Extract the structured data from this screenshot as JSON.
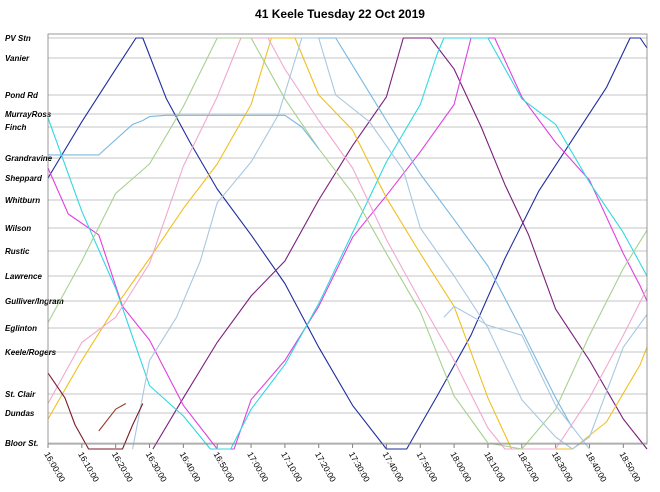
{
  "chart_data": {
    "type": "line",
    "title": "41 Keele Tuesday 22 Oct 2019",
    "xlabel": "",
    "ylabel": "",
    "grid": true,
    "xlim": [
      "16:00",
      "18:57"
    ],
    "x_ticks": [
      "16:00:00",
      "16:10:00",
      "16:20:00",
      "16:30:00",
      "16:40:00",
      "16:50:00",
      "17:00:00",
      "17:10:00",
      "17:20:00",
      "17:30:00",
      "17:40:00",
      "17:50:00",
      "18:00:00",
      "18:10:00",
      "18:20:00",
      "18:30:00",
      "18:40:00",
      "18:50:00"
    ],
    "stops": [
      "PV Stn",
      "Vanier",
      "Pond Rd",
      "MurrayRoss",
      "Finch",
      "Grandravine",
      "Sheppard",
      "Whitburn",
      "Wilson",
      "Rustic",
      "Lawrence",
      "Gulliver/Ingram",
      "Eglinton",
      "Keele/Rogers",
      "St. Clair",
      "Dundas",
      "Bloor St."
    ],
    "series": [
      {
        "color": "#1f2d9e",
        "points": [
          [
            "16:00",
            6
          ],
          [
            "16:10",
            3.6
          ],
          [
            "16:20",
            1.3
          ],
          [
            "16:26",
            0
          ],
          [
            "16:28",
            0
          ],
          [
            "16:35",
            2.2
          ],
          [
            "16:42",
            4.5
          ],
          [
            "16:50",
            6.5
          ],
          [
            "17:00",
            8.3
          ],
          [
            "17:10",
            10.3
          ],
          [
            "17:20",
            12.8
          ],
          [
            "17:30",
            14.6
          ],
          [
            "17:40",
            16.2
          ],
          [
            "17:46",
            16.2
          ],
          [
            "17:55",
            14.1
          ],
          [
            "18:05",
            12.3
          ],
          [
            "18:15",
            9.3
          ],
          [
            "18:25",
            6.6
          ],
          [
            "18:35",
            4.4
          ],
          [
            "18:45",
            1.8
          ],
          [
            "18:52",
            0
          ],
          [
            "18:55",
            0
          ],
          [
            "18:57",
            0.5
          ]
        ]
      },
      {
        "color": "#7a1f7a",
        "points": [
          [
            "16:31",
            16.2
          ],
          [
            "16:40",
            14.2
          ],
          [
            "16:50",
            12.6
          ],
          [
            "17:00",
            10.8
          ],
          [
            "17:10",
            9.4
          ],
          [
            "17:20",
            7
          ],
          [
            "17:30",
            4.6
          ],
          [
            "17:40",
            2.1
          ],
          [
            "17:45",
            0
          ],
          [
            "17:53",
            0
          ],
          [
            "18:00",
            1.3
          ],
          [
            "18:08",
            4
          ],
          [
            "18:15",
            6.3
          ],
          [
            "18:22",
            8.3
          ],
          [
            "18:30",
            11.3
          ],
          [
            "18:40",
            13.2
          ],
          [
            "18:50",
            15.2
          ],
          [
            "18:57",
            16.2
          ]
        ]
      },
      {
        "color": "#e040e0",
        "points": [
          [
            "16:00",
            5.5
          ],
          [
            "16:06",
            7.5
          ],
          [
            "16:15",
            8.3
          ],
          [
            "16:22",
            11.2
          ],
          [
            "16:30",
            12.5
          ],
          [
            "16:40",
            14.6
          ],
          [
            "16:50",
            16.2
          ],
          [
            "16:55",
            16.2
          ],
          [
            "17:00",
            14.3
          ],
          [
            "17:10",
            13.2
          ],
          [
            "17:20",
            11.2
          ],
          [
            "17:30",
            8.4
          ],
          [
            "17:40",
            6.8
          ],
          [
            "17:50",
            4.8
          ],
          [
            "18:00",
            2.5
          ],
          [
            "18:05",
            0
          ],
          [
            "18:12",
            0
          ],
          [
            "18:20",
            2.1
          ],
          [
            "18:30",
            4.5
          ],
          [
            "18:40",
            6.1
          ],
          [
            "18:50",
            9.1
          ],
          [
            "18:55",
            10.4
          ],
          [
            "18:57",
            11
          ]
        ]
      },
      {
        "color": "#30d8e0",
        "points": [
          [
            "16:00",
            3.3
          ],
          [
            "16:10",
            7.4
          ],
          [
            "16:20",
            10.5
          ],
          [
            "16:30",
            13.8
          ],
          [
            "16:40",
            15.1
          ],
          [
            "16:48",
            16.2
          ],
          [
            "16:54",
            16.2
          ],
          [
            "17:00",
            14.8
          ],
          [
            "17:10",
            13.3
          ],
          [
            "17:20",
            11.1
          ],
          [
            "17:30",
            8.2
          ],
          [
            "17:40",
            5.2
          ],
          [
            "17:50",
            2.5
          ],
          [
            "17:55",
            0.8
          ],
          [
            "17:57",
            0
          ],
          [
            "18:10",
            0
          ],
          [
            "18:20",
            2.2
          ],
          [
            "18:30",
            3.8
          ],
          [
            "18:40",
            6.2
          ],
          [
            "18:50",
            8.2
          ],
          [
            "18:57",
            10
          ]
        ]
      },
      {
        "color": "#f0c020",
        "points": [
          [
            "16:00",
            15.2
          ],
          [
            "16:10",
            13.2
          ],
          [
            "16:20",
            11.2
          ],
          [
            "16:30",
            9.3
          ],
          [
            "16:40",
            7.3
          ],
          [
            "16:50",
            5.3
          ],
          [
            "17:00",
            2.5
          ],
          [
            "17:06",
            0
          ],
          [
            "17:13",
            0
          ],
          [
            "17:20",
            2
          ],
          [
            "17:30",
            4.1
          ],
          [
            "17:40",
            6.9
          ],
          [
            "17:50",
            9.1
          ],
          [
            "18:00",
            11.2
          ],
          [
            "18:10",
            14.2
          ],
          [
            "18:17",
            16.2
          ],
          [
            "18:35",
            16.2
          ],
          [
            "18:45",
            15.3
          ],
          [
            "18:55",
            13.3
          ],
          [
            "18:57",
            12.8
          ]
        ]
      },
      {
        "color": "#f0a8d0",
        "points": [
          [
            "16:00",
            14.5
          ],
          [
            "16:10",
            12.6
          ],
          [
            "16:20",
            11.6
          ],
          [
            "16:30",
            9.5
          ],
          [
            "16:40",
            5.4
          ],
          [
            "16:50",
            2.1
          ],
          [
            "16:57",
            0
          ],
          [
            "17:05",
            0
          ],
          [
            "17:10",
            1.3
          ],
          [
            "17:20",
            3.5
          ],
          [
            "17:30",
            5.5
          ],
          [
            "17:40",
            8.5
          ],
          [
            "17:50",
            11
          ],
          [
            "18:00",
            13.2
          ],
          [
            "18:10",
            15.5
          ],
          [
            "18:15",
            16.2
          ],
          [
            "18:30",
            16.2
          ],
          [
            "18:40",
            14.2
          ],
          [
            "18:50",
            12.3
          ],
          [
            "18:57",
            10.5
          ]
        ]
      },
      {
        "color": "#a8d090",
        "points": [
          [
            "16:00",
            11.8
          ],
          [
            "16:10",
            9.4
          ],
          [
            "16:20",
            6.7
          ],
          [
            "16:30",
            5.3
          ],
          [
            "16:40",
            2.6
          ],
          [
            "16:50",
            0
          ],
          [
            "17:00",
            0
          ],
          [
            "17:10",
            2.2
          ],
          [
            "17:20",
            4.7
          ],
          [
            "17:30",
            6.7
          ],
          [
            "17:40",
            9.1
          ],
          [
            "17:50",
            11.4
          ],
          [
            "18:00",
            14.1
          ],
          [
            "18:10",
            16
          ],
          [
            "18:20",
            16.2
          ],
          [
            "18:30",
            14.8
          ],
          [
            "18:40",
            12.3
          ],
          [
            "18:50",
            9.7
          ],
          [
            "18:57",
            8.1
          ]
        ]
      },
      {
        "color": "#a8c8e0",
        "points": [
          [
            "16:25",
            16.2
          ],
          [
            "16:30",
            13.2
          ],
          [
            "16:38",
            11.6
          ],
          [
            "16:45",
            9.4
          ],
          [
            "16:50",
            7.1
          ],
          [
            "17:00",
            5.2
          ],
          [
            "17:08",
            3.1
          ],
          [
            "17:15",
            0
          ],
          [
            "17:20",
            0
          ],
          [
            "17:25",
            2
          ],
          [
            "17:35",
            3.6
          ],
          [
            "17:45",
            5.6
          ],
          [
            "17:50",
            8
          ],
          [
            "18:00",
            10
          ],
          [
            "18:10",
            12
          ],
          [
            "18:20",
            14.3
          ],
          [
            "18:30",
            15.8
          ],
          [
            "18:35",
            16.2
          ],
          [
            "18:40",
            15.8
          ],
          [
            "18:50",
            12.8
          ],
          [
            "18:57",
            11.5
          ]
        ]
      },
      {
        "color": "#7ab8e0",
        "points": [
          [
            "16:28",
            3.5
          ],
          [
            "16:30",
            3.2
          ],
          [
            "16:35",
            3.1
          ],
          [
            "16:50",
            3.1
          ],
          [
            "17:10",
            3.1
          ],
          [
            "17:15",
            4
          ],
          [
            "17:20",
            4.7
          ]
        ]
      },
      {
        "color": "#7ab8e0",
        "points": [
          [
            "17:20",
            0
          ],
          [
            "17:25",
            0
          ],
          [
            "17:30",
            1.2
          ],
          [
            "17:40",
            3.5
          ],
          [
            "17:50",
            5.8
          ],
          [
            "18:00",
            7.7
          ],
          [
            "18:10",
            9.6
          ],
          [
            "18:20",
            12.1
          ],
          [
            "18:30",
            14.2
          ],
          [
            "18:35",
            15.5
          ]
        ]
      },
      {
        "color": "#7ab8e0",
        "points": [
          [
            "16:00",
            4.9
          ],
          [
            "16:10",
            4.9
          ],
          [
            "16:15",
            4.9
          ],
          [
            "16:25",
            3.8
          ],
          [
            "16:28",
            3.5
          ]
        ]
      },
      {
        "color": "#a8c8e0",
        "points": [
          [
            "17:57",
            11.6
          ],
          [
            "18:00",
            11.2
          ],
          [
            "18:10",
            11.9
          ],
          [
            "18:20",
            12.3
          ],
          [
            "18:30",
            14.6
          ],
          [
            "18:40",
            16.2
          ]
        ]
      },
      {
        "color": "#7a1a2a",
        "points": [
          [
            "16:00",
            13.5
          ],
          [
            "16:05",
            14.2
          ],
          [
            "16:08",
            15.4
          ],
          [
            "16:12",
            16.2
          ],
          [
            "16:22",
            16.2
          ],
          [
            "16:25",
            15.4
          ],
          [
            "16:28",
            14.5
          ]
        ]
      },
      {
        "color": "#9a3a2a",
        "points": [
          [
            "16:15",
            15.6
          ],
          [
            "16:20",
            14.8
          ],
          [
            "16:23",
            14.5
          ]
        ]
      }
    ]
  }
}
